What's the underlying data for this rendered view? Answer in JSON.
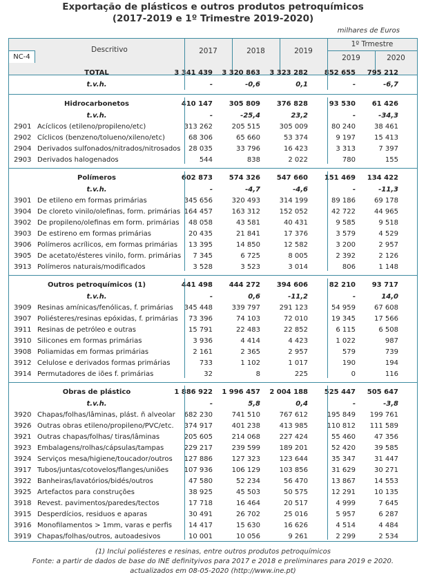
{
  "title": {
    "line1": "Exportação de plásticos e outros produtos petroquímicos",
    "line2": "(2017-2019 e 1º Trimestre 2019-2020)"
  },
  "units": "milhares de Euros",
  "header": {
    "code": "NC-4",
    "desc": "Descritivo",
    "years": [
      "2017",
      "2018",
      "2019"
    ],
    "quarter_group": "1º Trmestre",
    "quarter_years": [
      "2019",
      "2020"
    ]
  },
  "sections": [
    {
      "name": "TOTAL",
      "values": [
        "3 341 439",
        "3 320 863",
        "3 323 282",
        "852 655",
        "795 212"
      ],
      "tvh_label": "t.v.h.",
      "tvh": [
        "-",
        "-0,6",
        "0,1",
        "-",
        "-6,7"
      ],
      "rows": []
    },
    {
      "name": "Hidrocarbonetos",
      "values": [
        "410 147",
        "305 809",
        "376 828",
        "93 530",
        "61 426"
      ],
      "tvh_label": "t.v.h.",
      "tvh": [
        "-",
        "-25,4",
        "23,2",
        "-",
        "-34,3"
      ],
      "rows": [
        {
          "code": "2901",
          "desc": "Acíclicos (etileno/propileno/etc)",
          "values": [
            "313 262",
            "205 515",
            "305 009",
            "80 240",
            "38 461"
          ]
        },
        {
          "code": "2902",
          "desc": "Cíclicos (benzeno/tolueno/xileno/etc)",
          "values": [
            "68 306",
            "65 660",
            "53 374",
            "9 197",
            "15 413"
          ]
        },
        {
          "code": "2904",
          "desc": "Derivados sulfonados/nitrados/nitrosados",
          "values": [
            "28 035",
            "33 796",
            "16 423",
            "3 313",
            "7 397"
          ]
        },
        {
          "code": "2903",
          "desc": "Derivados halogenados",
          "values": [
            "544",
            "838",
            "2 022",
            "780",
            "155"
          ]
        }
      ]
    },
    {
      "name": "Polímeros",
      "values": [
        "602 873",
        "574 326",
        "547 660",
        "151 469",
        "134 422"
      ],
      "tvh_label": "t.v.h.",
      "tvh": [
        "-",
        "-4,7",
        "-4,6",
        "-",
        "-11,3"
      ],
      "rows": [
        {
          "code": "3901",
          "desc": "De etileno em formas primárias",
          "values": [
            "345 656",
            "320 493",
            "314 199",
            "89 186",
            "69 178"
          ]
        },
        {
          "code": "3904",
          "desc": "De cloreto vinilo/olefinas, form. primárias",
          "values": [
            "164 457",
            "163 312",
            "152 052",
            "42 722",
            "44 965"
          ]
        },
        {
          "code": "3902",
          "desc": "De propileno/olefinas em form. primárias",
          "values": [
            "48 058",
            "43 581",
            "40 431",
            "9 585",
            "9 518"
          ]
        },
        {
          "code": "3903",
          "desc": "De estireno em formas primárias",
          "values": [
            "20 435",
            "21 841",
            "17 376",
            "3 579",
            "4 529"
          ]
        },
        {
          "code": "3906",
          "desc": "Polímeros acrílicos, em formas primárias",
          "values": [
            "13 395",
            "14 850",
            "12 582",
            "3 200",
            "2 957"
          ]
        },
        {
          "code": "3905",
          "desc": "De acetato/ésteres vinilo, form. primárias",
          "values": [
            "7 345",
            "6 725",
            "8 005",
            "2 392",
            "2 126"
          ]
        },
        {
          "code": "3913",
          "desc": "Polímeros naturais/modificados",
          "values": [
            "3 528",
            "3 523",
            "3 014",
            "806",
            "1 148"
          ]
        }
      ]
    },
    {
      "name": "Outros petroquímicos (1)",
      "values": [
        "441 498",
        "444 272",
        "394 606",
        "82 210",
        "93 717"
      ],
      "tvh_label": "t.v.h.",
      "tvh": [
        "-",
        "0,6",
        "-11,2",
        "-",
        "14,0"
      ],
      "rows": [
        {
          "code": "3909",
          "desc": "Resinas amínicas/fenólicas, f. primárias",
          "values": [
            "345 448",
            "339 797",
            "291 123",
            "54 959",
            "67 608"
          ]
        },
        {
          "code": "3907",
          "desc": "Poliésteres/resinas epóxidas, f. primárias",
          "values": [
            "73 396",
            "74 103",
            "72 010",
            "19 345",
            "17 566"
          ]
        },
        {
          "code": "3911",
          "desc": "Resinas de petróleo e outras",
          "values": [
            "15 791",
            "22 483",
            "22 852",
            "6 115",
            "6 508"
          ]
        },
        {
          "code": "3910",
          "desc": "Silicones em formas primárias",
          "values": [
            "3 936",
            "4 414",
            "4 423",
            "1 022",
            "987"
          ]
        },
        {
          "code": "3908",
          "desc": "Poliamidas em formas primárias",
          "values": [
            "2 161",
            "2 365",
            "2 957",
            "579",
            "739"
          ]
        },
        {
          "code": "3912",
          "desc": "Celulose e derivados formas primárias",
          "values": [
            "733",
            "1 102",
            "1 017",
            "190",
            "194"
          ]
        },
        {
          "code": "3914",
          "desc": "Permutadores de iões f. primárias",
          "values": [
            "32",
            "8",
            "225",
            "0",
            "116"
          ]
        }
      ]
    },
    {
      "name": "Obras de plástico",
      "values": [
        "1 886 922",
        "1 996 457",
        "2 004 188",
        "525 447",
        "505 647"
      ],
      "tvh_label": "t.v.h.",
      "tvh": [
        "-",
        "5,8",
        "0,4",
        "-",
        "-3,8"
      ],
      "rows": [
        {
          "code": "3920",
          "desc": "Chapas/folhas/lâminas,  plást. ñ alveolar",
          "values": [
            "682 230",
            "741 510",
            "767 612",
            "195 849",
            "199 761"
          ]
        },
        {
          "code": "3926",
          "desc": "Outras obras etileno/propileno/PVC/etc.",
          "values": [
            "374 917",
            "401 238",
            "413 985",
            "110 812",
            "111 589"
          ]
        },
        {
          "code": "3921",
          "desc": "Outras chapas/folhas/ tiras/lâminas",
          "values": [
            "205 605",
            "214 068",
            "227 424",
            "55 460",
            "47 356"
          ]
        },
        {
          "code": "3923",
          "desc": "Embalagens/rolhas/cápsulas/tampas",
          "values": [
            "229 217",
            "239 599",
            "189 201",
            "52 420",
            "39 585"
          ]
        },
        {
          "code": "3924",
          "desc": "Serviços mesa/higiene/toucador/outros",
          "values": [
            "127 886",
            "127 323",
            "123 644",
            "35 347",
            "31 447"
          ]
        },
        {
          "code": "3917",
          "desc": "Tubos/juntas/cotovelos/flanges/uniões",
          "values": [
            "107 936",
            "106 129",
            "103 856",
            "31 629",
            "30 271"
          ]
        },
        {
          "code": "3922",
          "desc": "Banheiras/lavatórios/bidés/outros",
          "values": [
            "47 580",
            "52 234",
            "56 470",
            "13 867",
            "14 553"
          ]
        },
        {
          "code": "3925",
          "desc": "Artefactos para construções",
          "values": [
            "38 925",
            "45 503",
            "50 575",
            "12 291",
            "10 135"
          ]
        },
        {
          "code": "3918",
          "desc": "Revest. pavimentos/paredes/tectos",
          "values": [
            "17 718",
            "16 464",
            "20 517",
            "4 999",
            "7 645"
          ]
        },
        {
          "code": "3915",
          "desc": "Desperdícios, residuos e aparas",
          "values": [
            "30 491",
            "26 702",
            "25 016",
            "5 957",
            "6 287"
          ]
        },
        {
          "code": "3916",
          "desc": "Monofilamentos > 1mm, varas e perfis",
          "values": [
            "14 417",
            "15 630",
            "16 626",
            "4 514",
            "4 484"
          ]
        },
        {
          "code": "3919",
          "desc": "Chapas/folhas/outros, autoadesivos",
          "values": [
            "10 001",
            "10 056",
            "9 261",
            "2 299",
            "2 534"
          ]
        }
      ]
    }
  ],
  "footer": {
    "note": "(1) Inclui poliésteres e resinas, entre outros produtos petroquímicos",
    "source": "Fonte: a partir de dados de base do INE definityivos para 2017 e 2018 e preliminares para 2019 e 2020.",
    "updated": "actualizados em 08-05-2020  (http://www.ine.pt)"
  }
}
